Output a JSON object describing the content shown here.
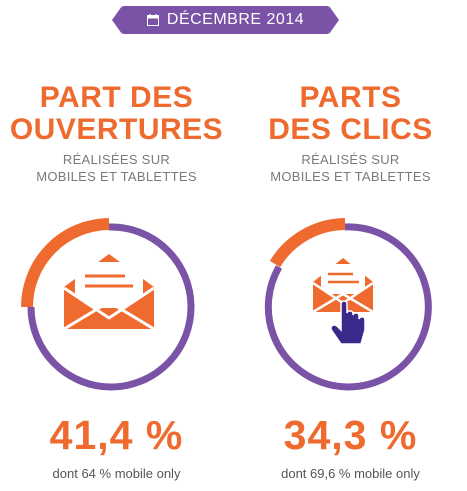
{
  "header": {
    "label": "DÉCEMBRE 2014",
    "icon": "calendar-icon"
  },
  "colors": {
    "orange": "#ef6a2e",
    "purple": "#7a52a6",
    "grey": "#7a7a7a"
  },
  "left_panel": {
    "title_line1": "PART DES",
    "title_line2": "OUVERTURES",
    "subtitle_line1": "RÉALISÉES SUR",
    "subtitle_line2": "MOBILES ET TABLETTES",
    "value": "41,4 %",
    "note": "dont 64 % mobile only",
    "share": 0.414,
    "icon": "open-envelope-icon"
  },
  "right_panel": {
    "title_line1": "PARTS",
    "title_line2": "DES CLICS",
    "subtitle_line1": "RÉALISÉS SUR",
    "subtitle_line2": "MOBILES ET TABLETTES",
    "value": "34,3 %",
    "note": "dont 69,6 % mobile only",
    "share": 0.343,
    "icon": "envelope-click-icon"
  }
}
